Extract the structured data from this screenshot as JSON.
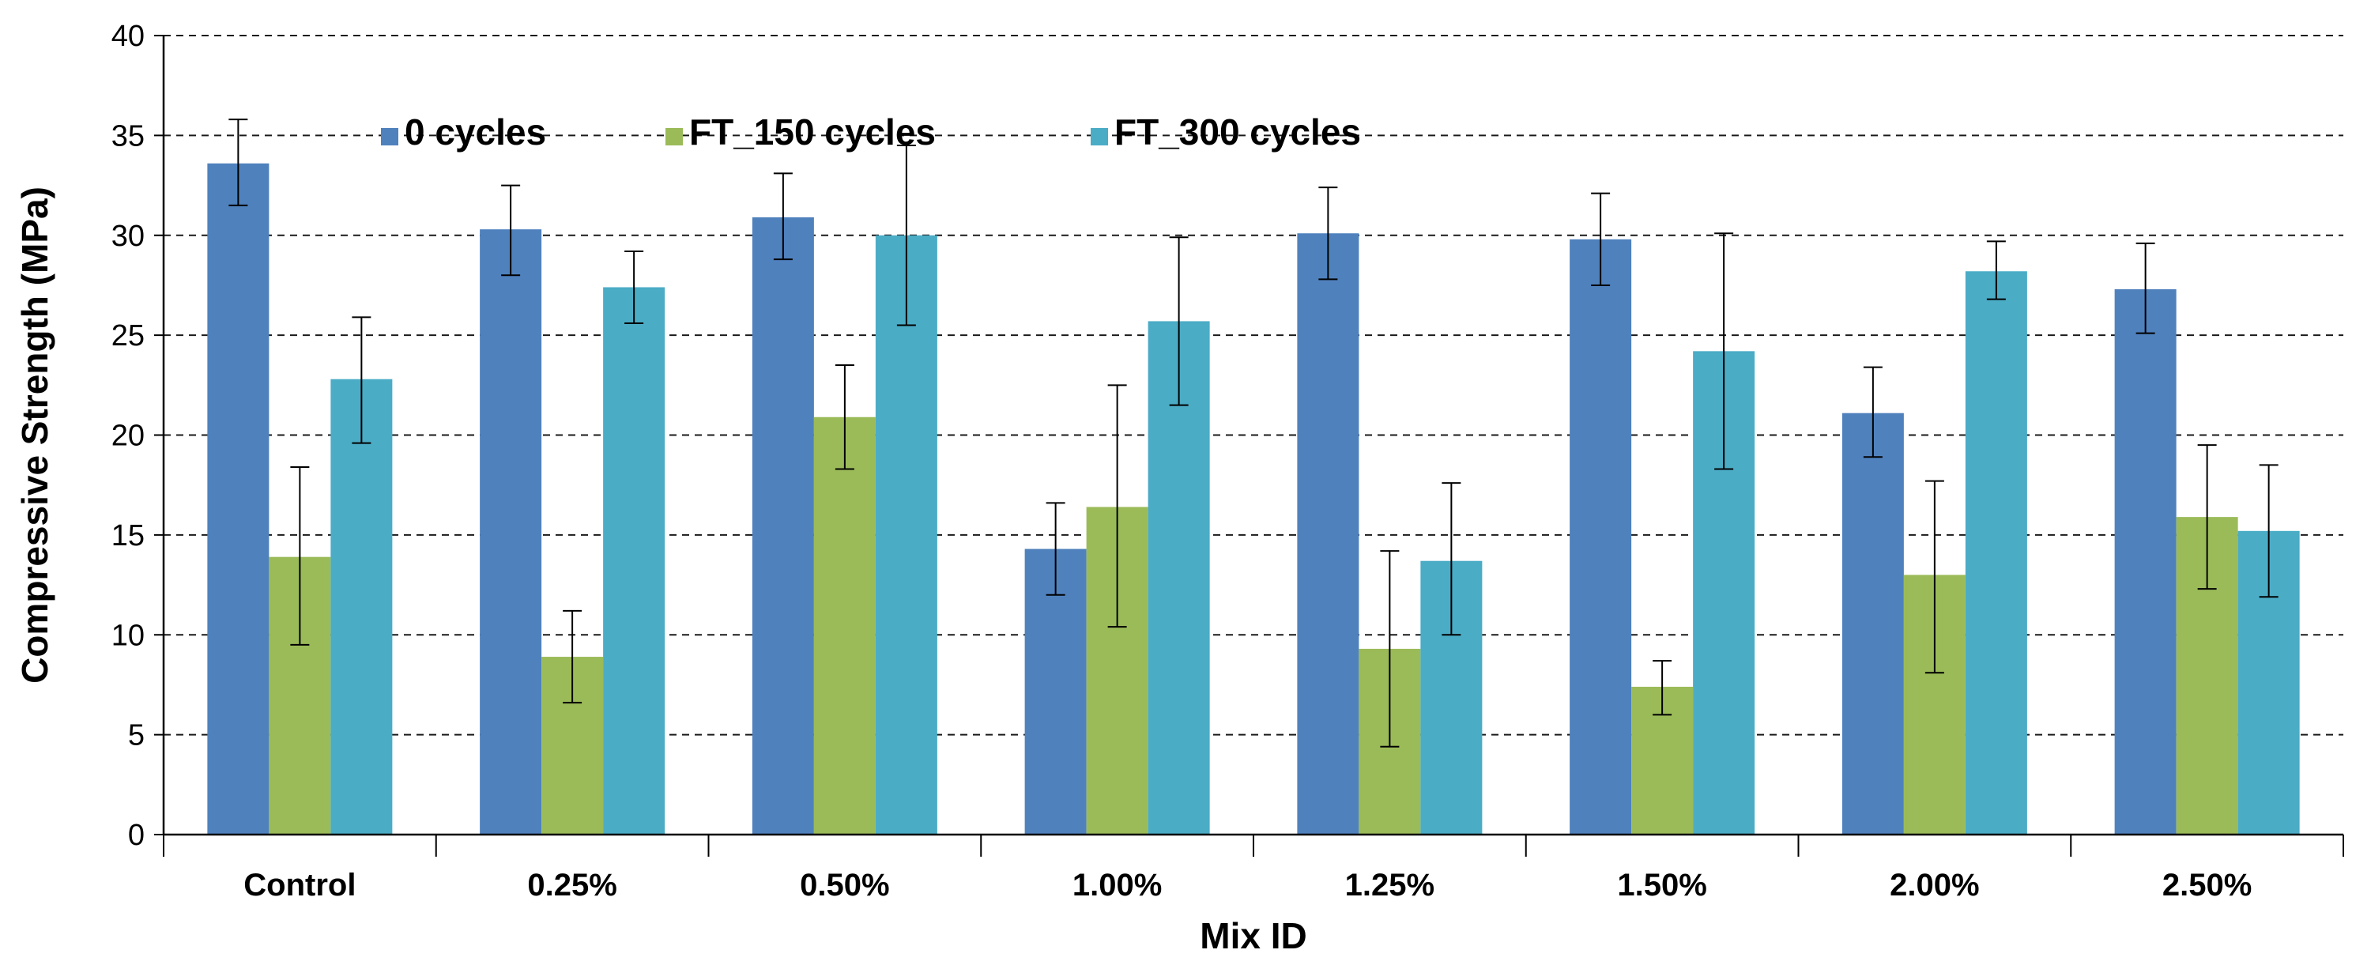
{
  "chart_data": {
    "type": "bar",
    "title": "",
    "xlabel": "Mix ID",
    "ylabel": "Compressive Strength (MPa)",
    "ylim": [
      0,
      40
    ],
    "yticks": [
      0,
      5,
      10,
      15,
      20,
      25,
      30,
      35,
      40
    ],
    "grid": "horizontal dashed",
    "legend_position": "top-left",
    "categories": [
      "Control",
      "0.25%",
      "0.50%",
      "1.00%",
      "1.25%",
      "1.50%",
      "2.00%",
      "2.50%"
    ],
    "series": [
      {
        "name": "0 cycles",
        "color": "#4F81BD",
        "values": [
          33.6,
          30.3,
          30.9,
          14.3,
          30.1,
          29.8,
          21.1,
          27.3
        ],
        "error_low": [
          31.5,
          28.0,
          28.8,
          12.0,
          27.8,
          27.5,
          18.9,
          25.1
        ],
        "error_high": [
          35.8,
          32.5,
          33.1,
          16.6,
          32.4,
          32.1,
          23.4,
          29.6
        ]
      },
      {
        "name": "FT_150 cycles",
        "color": "#9BBB59",
        "values": [
          13.9,
          8.9,
          20.9,
          16.4,
          9.3,
          7.4,
          13.0,
          15.9
        ],
        "error_low": [
          9.5,
          6.6,
          18.3,
          10.4,
          4.4,
          6.0,
          8.1,
          12.3
        ],
        "error_high": [
          18.4,
          11.2,
          23.5,
          22.5,
          14.2,
          8.7,
          17.7,
          19.5
        ]
      },
      {
        "name": "FT_300 cycles",
        "color": "#4BACC6",
        "values": [
          22.8,
          27.4,
          30.0,
          25.7,
          13.7,
          24.2,
          28.2,
          15.2
        ],
        "error_low": [
          19.6,
          25.6,
          25.5,
          21.5,
          10.0,
          18.3,
          26.8,
          11.9
        ],
        "error_high": [
          25.9,
          29.2,
          34.5,
          29.9,
          17.6,
          30.1,
          29.7,
          18.5
        ]
      }
    ]
  }
}
